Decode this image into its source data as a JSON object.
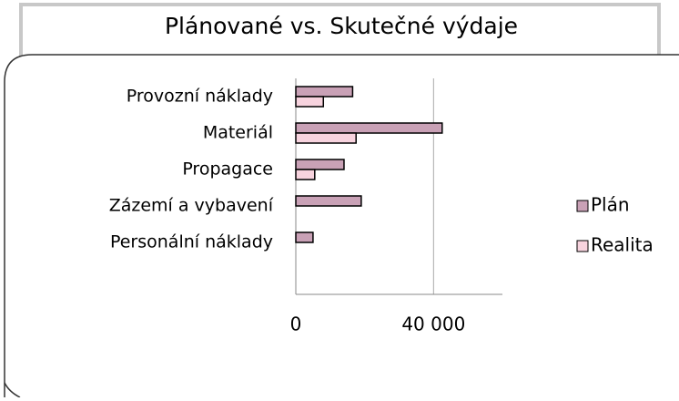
{
  "chart_data": {
    "type": "hbar",
    "title": "Plánované vs. Skutečné výdaje",
    "categories": [
      "Provozní náklady",
      "Materiál",
      "Propagace",
      "Zázemí a vybavení",
      "Personální náklady"
    ],
    "series": [
      {
        "name": "Plán",
        "color": "#c9a1b6",
        "values": [
          16500,
          42500,
          14000,
          19000,
          5000
        ]
      },
      {
        "name": "Realita",
        "color": "#f7d3de",
        "values": [
          8000,
          17500,
          5500,
          0,
          0
        ]
      }
    ],
    "xlim": [
      0,
      60000
    ],
    "xticks": [
      0,
      {
        "value": 40000,
        "label": "40 000"
      }
    ],
    "grid": true,
    "legend": "right"
  }
}
